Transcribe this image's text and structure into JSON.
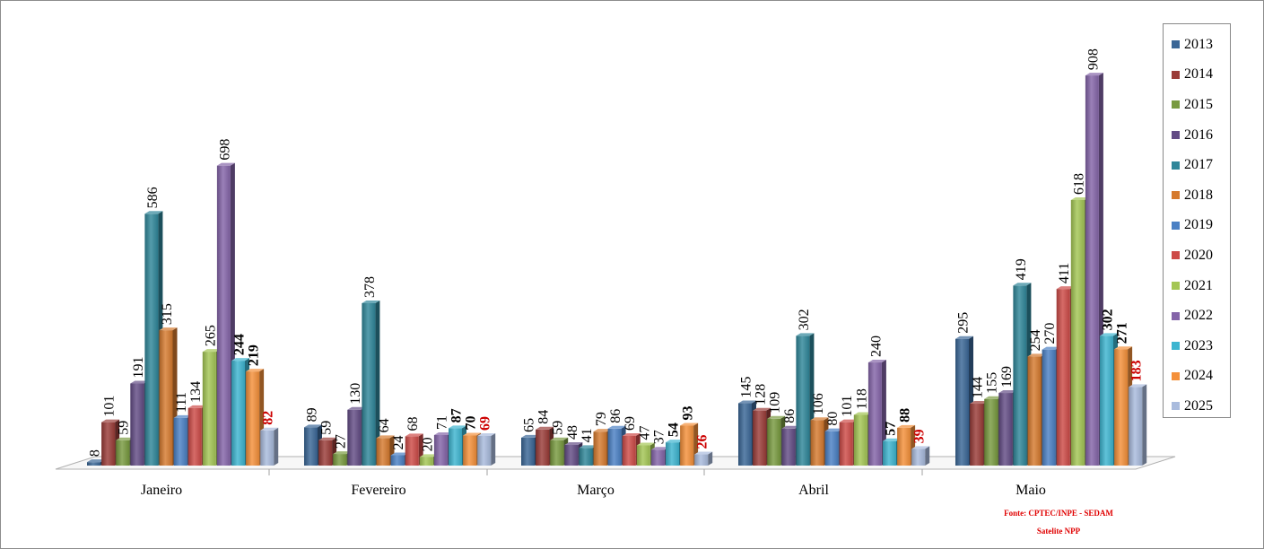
{
  "chart_data": {
    "type": "bar",
    "categories": [
      "Janeiro",
      "Fevereiro",
      "Março",
      "Abril",
      "Maio"
    ],
    "ylim": [
      0,
      1000
    ],
    "grid": false,
    "legend_position": "right",
    "series": [
      {
        "name": "2013",
        "color": "#3A6696",
        "values": [
          8,
          89,
          65,
          145,
          295
        ]
      },
      {
        "name": "2014",
        "color": "#9A3C38",
        "values": [
          101,
          59,
          84,
          128,
          144
        ]
      },
      {
        "name": "2015",
        "color": "#789A3F",
        "values": [
          59,
          27,
          59,
          109,
          155
        ]
      },
      {
        "name": "2016",
        "color": "#634C85",
        "values": [
          191,
          130,
          48,
          86,
          169
        ]
      },
      {
        "name": "2017",
        "color": "#2F8699",
        "values": [
          586,
          378,
          41,
          302,
          419
        ]
      },
      {
        "name": "2018",
        "color": "#D57A2E",
        "values": [
          315,
          64,
          79,
          106,
          254
        ]
      },
      {
        "name": "2019",
        "color": "#4A80C4",
        "values": [
          111,
          24,
          86,
          80,
          270
        ]
      },
      {
        "name": "2020",
        "color": "#CD4A47",
        "values": [
          134,
          68,
          69,
          101,
          411
        ]
      },
      {
        "name": "2021",
        "color": "#A4C654",
        "values": [
          265,
          20,
          47,
          118,
          618
        ]
      },
      {
        "name": "2022",
        "color": "#8464A8",
        "values": [
          698,
          71,
          37,
          240,
          908
        ]
      },
      {
        "name": "2023",
        "color": "#3DB5D0",
        "values": [
          244,
          87,
          54,
          57,
          302
        ]
      },
      {
        "name": "2024",
        "color": "#F4903A",
        "values": [
          219,
          70,
          93,
          88,
          271
        ]
      },
      {
        "name": "2025",
        "color": "#A9BBDD",
        "values": [
          82,
          69,
          26,
          39,
          183
        ]
      }
    ],
    "bold_series": [
      "2023",
      "2024",
      "2025"
    ],
    "highlight_series": "2025",
    "highlight_color": "#CC0000"
  },
  "source": {
    "line1": "Fonte: CPTEC/INPE - SEDAM",
    "line2": "Satelite NPP"
  }
}
